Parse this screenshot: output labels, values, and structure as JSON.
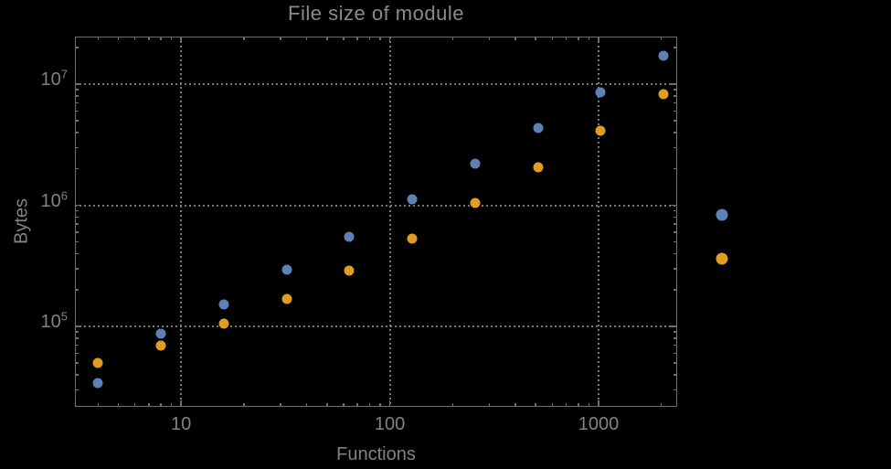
{
  "title": "File size of module",
  "colors": {
    "background": "#000000",
    "frame": "#6f6f6f",
    "gridline": "#7a7a7a",
    "text": "#828282",
    "series1": "#5e81b5",
    "series2": "#e19c24"
  },
  "chart_data": {
    "type": "scatter",
    "title": "File size of module",
    "xlabel": "Functions",
    "ylabel": "Bytes",
    "x_scale": "log",
    "y_scale": "log",
    "xlim": [
      3.1,
      2380
    ],
    "ylim": [
      21700,
      24700000
    ],
    "grid": "dotted lines at decade positions, major ticks only",
    "legend_position": "right of frame, markers only (no visible label text)",
    "x": [
      4,
      8,
      16,
      32,
      64,
      128,
      256,
      512,
      1024,
      2048
    ],
    "series": [
      {
        "name": "series-1-blue",
        "color": "#5e81b5",
        "marker": "disk",
        "values": [
          34000,
          87000,
          152000,
          294000,
          549000,
          1120000,
          2200000,
          4340000,
          8550000,
          17100000
        ]
      },
      {
        "name": "series-2-orange",
        "color": "#e19c24",
        "marker": "disk",
        "values": [
          50000,
          69000,
          105000,
          168000,
          289000,
          530000,
          1040000,
          2060000,
          4120000,
          8260000
        ]
      }
    ],
    "x_major_ticks": [
      {
        "value": 10,
        "label": "10"
      },
      {
        "value": 100,
        "label": "100"
      },
      {
        "value": 1000,
        "label": "1000"
      }
    ],
    "y_major_ticks": [
      {
        "value": 100000,
        "mantissa": "10",
        "exponent": "5"
      },
      {
        "value": 1000000,
        "mantissa": "10",
        "exponent": "6"
      },
      {
        "value": 10000000,
        "mantissa": "10",
        "exponent": "7"
      }
    ]
  },
  "legend": {
    "markers": [
      {
        "name": "series-1-blue",
        "color": "#5e81b5"
      },
      {
        "name": "series-2-orange",
        "color": "#e19c24"
      }
    ]
  }
}
